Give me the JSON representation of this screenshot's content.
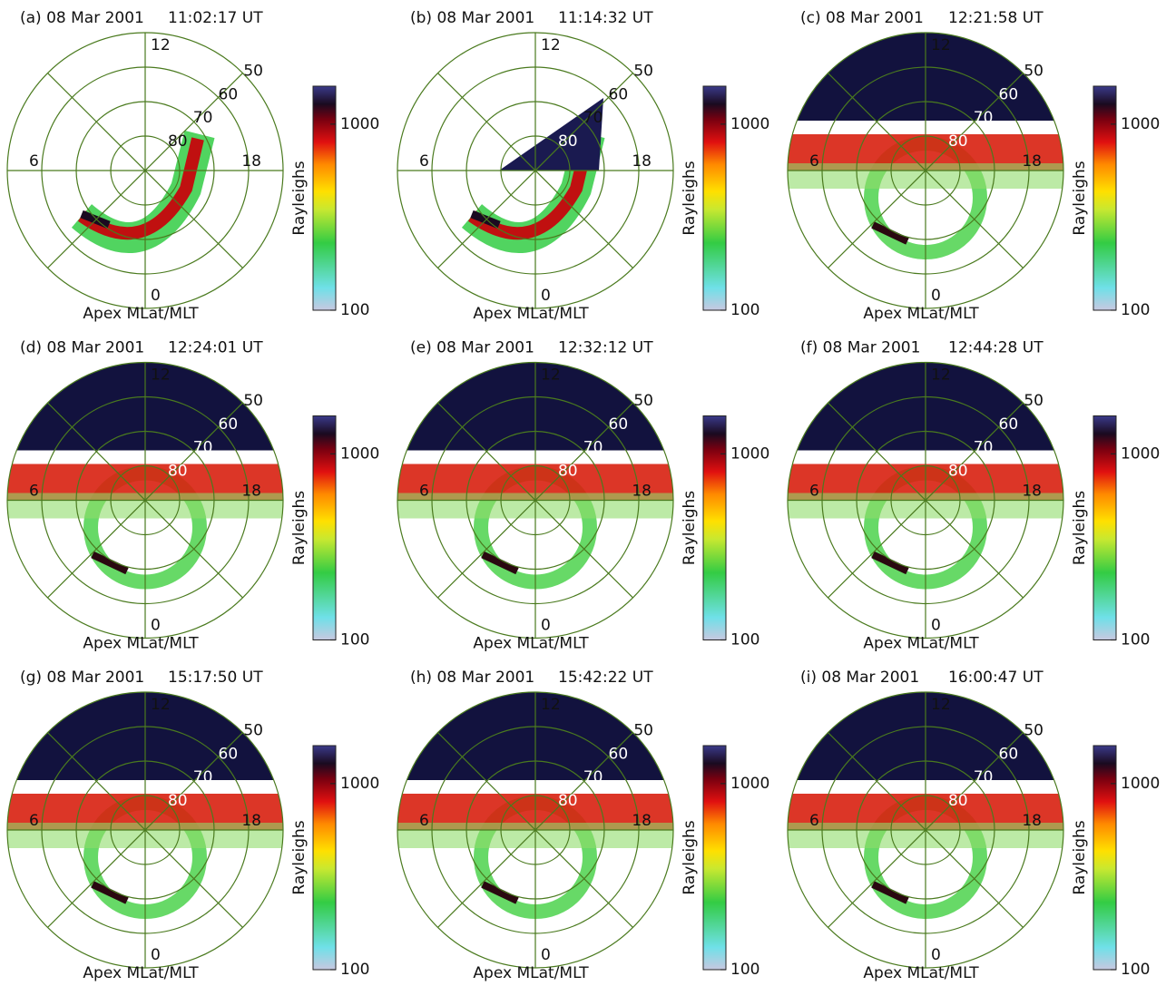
{
  "chart_data": [
    {
      "type": "polar-image",
      "title": "(a) 08 Mar 2001",
      "time": "11:02:17 UT",
      "xlabel": "Apex MLat/MLT",
      "rlim": [
        50,
        90
      ],
      "lat_ticks": [
        50,
        60,
        70,
        80
      ],
      "mlt_ticks": [
        0,
        6,
        12,
        18
      ],
      "colorbar": {
        "label": "Rayleighs",
        "log": true,
        "ylim": [
          100,
          1600
        ],
        "yticks": [
          100,
          1000
        ]
      }
    },
    {
      "type": "polar-image",
      "title": "(b) 08 Mar 2001",
      "time": "11:14:32 UT",
      "xlabel": "Apex MLat/MLT",
      "rlim": [
        50,
        90
      ],
      "lat_ticks": [
        50,
        60,
        70,
        80
      ],
      "mlt_ticks": [
        0,
        6,
        12,
        18
      ],
      "colorbar": {
        "label": "Rayleighs",
        "log": true,
        "ylim": [
          100,
          1600
        ],
        "yticks": [
          100,
          1000
        ]
      }
    },
    {
      "type": "polar-image",
      "title": "(c) 08 Mar 2001",
      "time": "12:21:58 UT",
      "xlabel": "Apex MLat/MLT",
      "rlim": [
        50,
        90
      ],
      "lat_ticks": [
        50,
        60,
        70,
        80
      ],
      "mlt_ticks": [
        0,
        6,
        12,
        18
      ],
      "colorbar": {
        "label": "Rayleighs",
        "log": true,
        "ylim": [
          100,
          1600
        ],
        "yticks": [
          100,
          1000
        ]
      }
    },
    {
      "type": "polar-image",
      "title": "(d) 08 Mar 2001",
      "time": "12:24:01 UT",
      "xlabel": "Apex MLat/MLT",
      "rlim": [
        50,
        90
      ],
      "lat_ticks": [
        50,
        60,
        70,
        80
      ],
      "mlt_ticks": [
        0,
        6,
        12,
        18
      ],
      "colorbar": {
        "label": "Rayleighs",
        "log": true,
        "ylim": [
          100,
          1600
        ],
        "yticks": [
          100,
          1000
        ]
      }
    },
    {
      "type": "polar-image",
      "title": "(e) 08 Mar 2001",
      "time": "12:32:12 UT",
      "xlabel": "Apex MLat/MLT",
      "rlim": [
        50,
        90
      ],
      "lat_ticks": [
        50,
        60,
        70,
        80
      ],
      "mlt_ticks": [
        0,
        6,
        12,
        18
      ],
      "colorbar": {
        "label": "Rayleighs",
        "log": true,
        "ylim": [
          100,
          1600
        ],
        "yticks": [
          100,
          1000
        ]
      }
    },
    {
      "type": "polar-image",
      "title": "(f) 08 Mar 2001",
      "time": "12:44:28 UT",
      "xlabel": "Apex MLat/MLT",
      "rlim": [
        50,
        90
      ],
      "lat_ticks": [
        50,
        60,
        70,
        80
      ],
      "mlt_ticks": [
        0,
        6,
        12,
        18
      ],
      "colorbar": {
        "label": "Rayleighs",
        "log": true,
        "ylim": [
          100,
          1600
        ],
        "yticks": [
          100,
          1000
        ]
      }
    },
    {
      "type": "polar-image",
      "title": "(g) 08 Mar 2001",
      "time": "15:17:50 UT",
      "xlabel": "Apex MLat/MLT",
      "rlim": [
        50,
        90
      ],
      "lat_ticks": [
        50,
        60,
        70,
        80
      ],
      "mlt_ticks": [
        0,
        6,
        12,
        18
      ],
      "colorbar": {
        "label": "Rayleighs",
        "log": true,
        "ylim": [
          100,
          1600
        ],
        "yticks": [
          100,
          1000
        ]
      }
    },
    {
      "type": "polar-image",
      "title": "(h) 08 Mar 2001",
      "time": "15:42:22 UT",
      "xlabel": "Apex MLat/MLT",
      "rlim": [
        50,
        90
      ],
      "lat_ticks": [
        50,
        60,
        70,
        80
      ],
      "mlt_ticks": [
        0,
        6,
        12,
        18
      ],
      "colorbar": {
        "label": "Rayleighs",
        "log": true,
        "ylim": [
          100,
          1600
        ],
        "yticks": [
          100,
          1000
        ]
      }
    },
    {
      "type": "polar-image",
      "title": "(i) 08 Mar 2001",
      "time": "16:00:47 UT",
      "xlabel": "Apex MLat/MLT",
      "rlim": [
        50,
        90
      ],
      "lat_ticks": [
        50,
        60,
        70,
        80
      ],
      "mlt_ticks": [
        0,
        6,
        12,
        18
      ],
      "colorbar": {
        "label": "Rayleighs",
        "log": true,
        "ylim": [
          100,
          1600
        ],
        "yticks": [
          100,
          1000
        ]
      }
    }
  ]
}
